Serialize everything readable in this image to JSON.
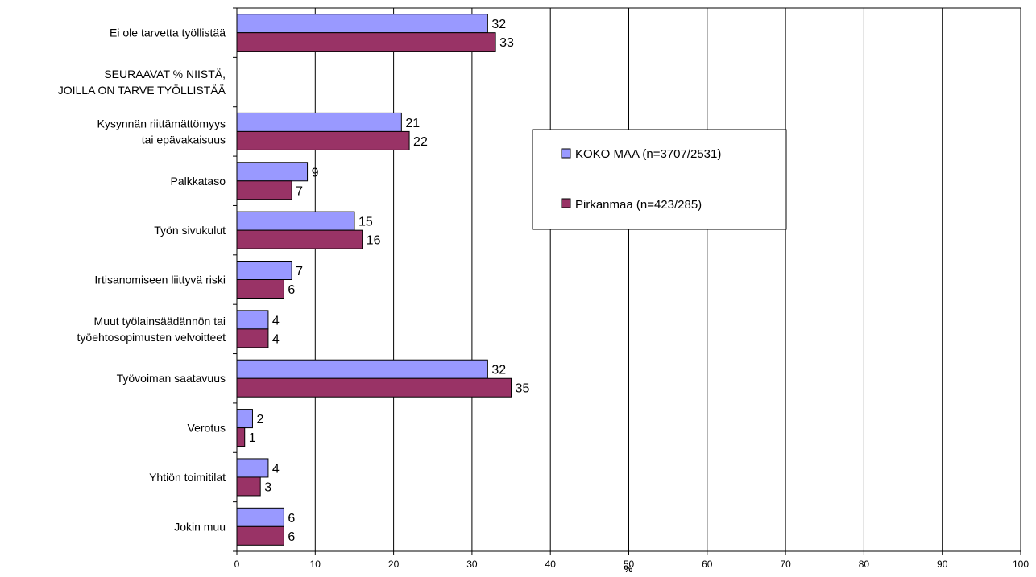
{
  "chart_data": {
    "type": "bar",
    "orientation": "horizontal",
    "categories": [
      [
        "Ei ole tarvetta työllistää"
      ],
      [
        "SEURAAVAT % NIISTÄ,",
        "JOILLA ON TARVE TYÖLLISTÄÄ"
      ],
      [
        "Kysynnän riittämättömyys",
        "tai epävakaisuus"
      ],
      [
        "Palkkataso"
      ],
      [
        "Työn sivukulut"
      ],
      [
        "Irtisanomiseen liittyvä riski"
      ],
      [
        "Muut työlainsäädännön tai",
        "työehtosopimusten velvoitteet"
      ],
      [
        "Työvoiman saatavuus"
      ],
      [
        "Verotus"
      ],
      [
        "Yhtiön toimitilat"
      ],
      [
        "Jokin muu"
      ]
    ],
    "series": [
      {
        "name": "KOKO MAA (n=3707/2531)",
        "color": "#9999ff",
        "values": [
          32,
          null,
          21,
          9,
          15,
          7,
          4,
          32,
          2,
          4,
          6
        ]
      },
      {
        "name": "Pirkanmaa (n=423/285)",
        "color": "#993366",
        "values": [
          33,
          null,
          22,
          7,
          16,
          6,
          4,
          35,
          1,
          3,
          6
        ]
      }
    ],
    "xlabel": "%",
    "xlim": [
      0,
      100
    ],
    "xticks": [
      "0",
      "10",
      "20",
      "30",
      "40",
      "50",
      "60",
      "70",
      "80",
      "90",
      "100"
    ],
    "grid": "vertical",
    "legend_position": "right"
  }
}
